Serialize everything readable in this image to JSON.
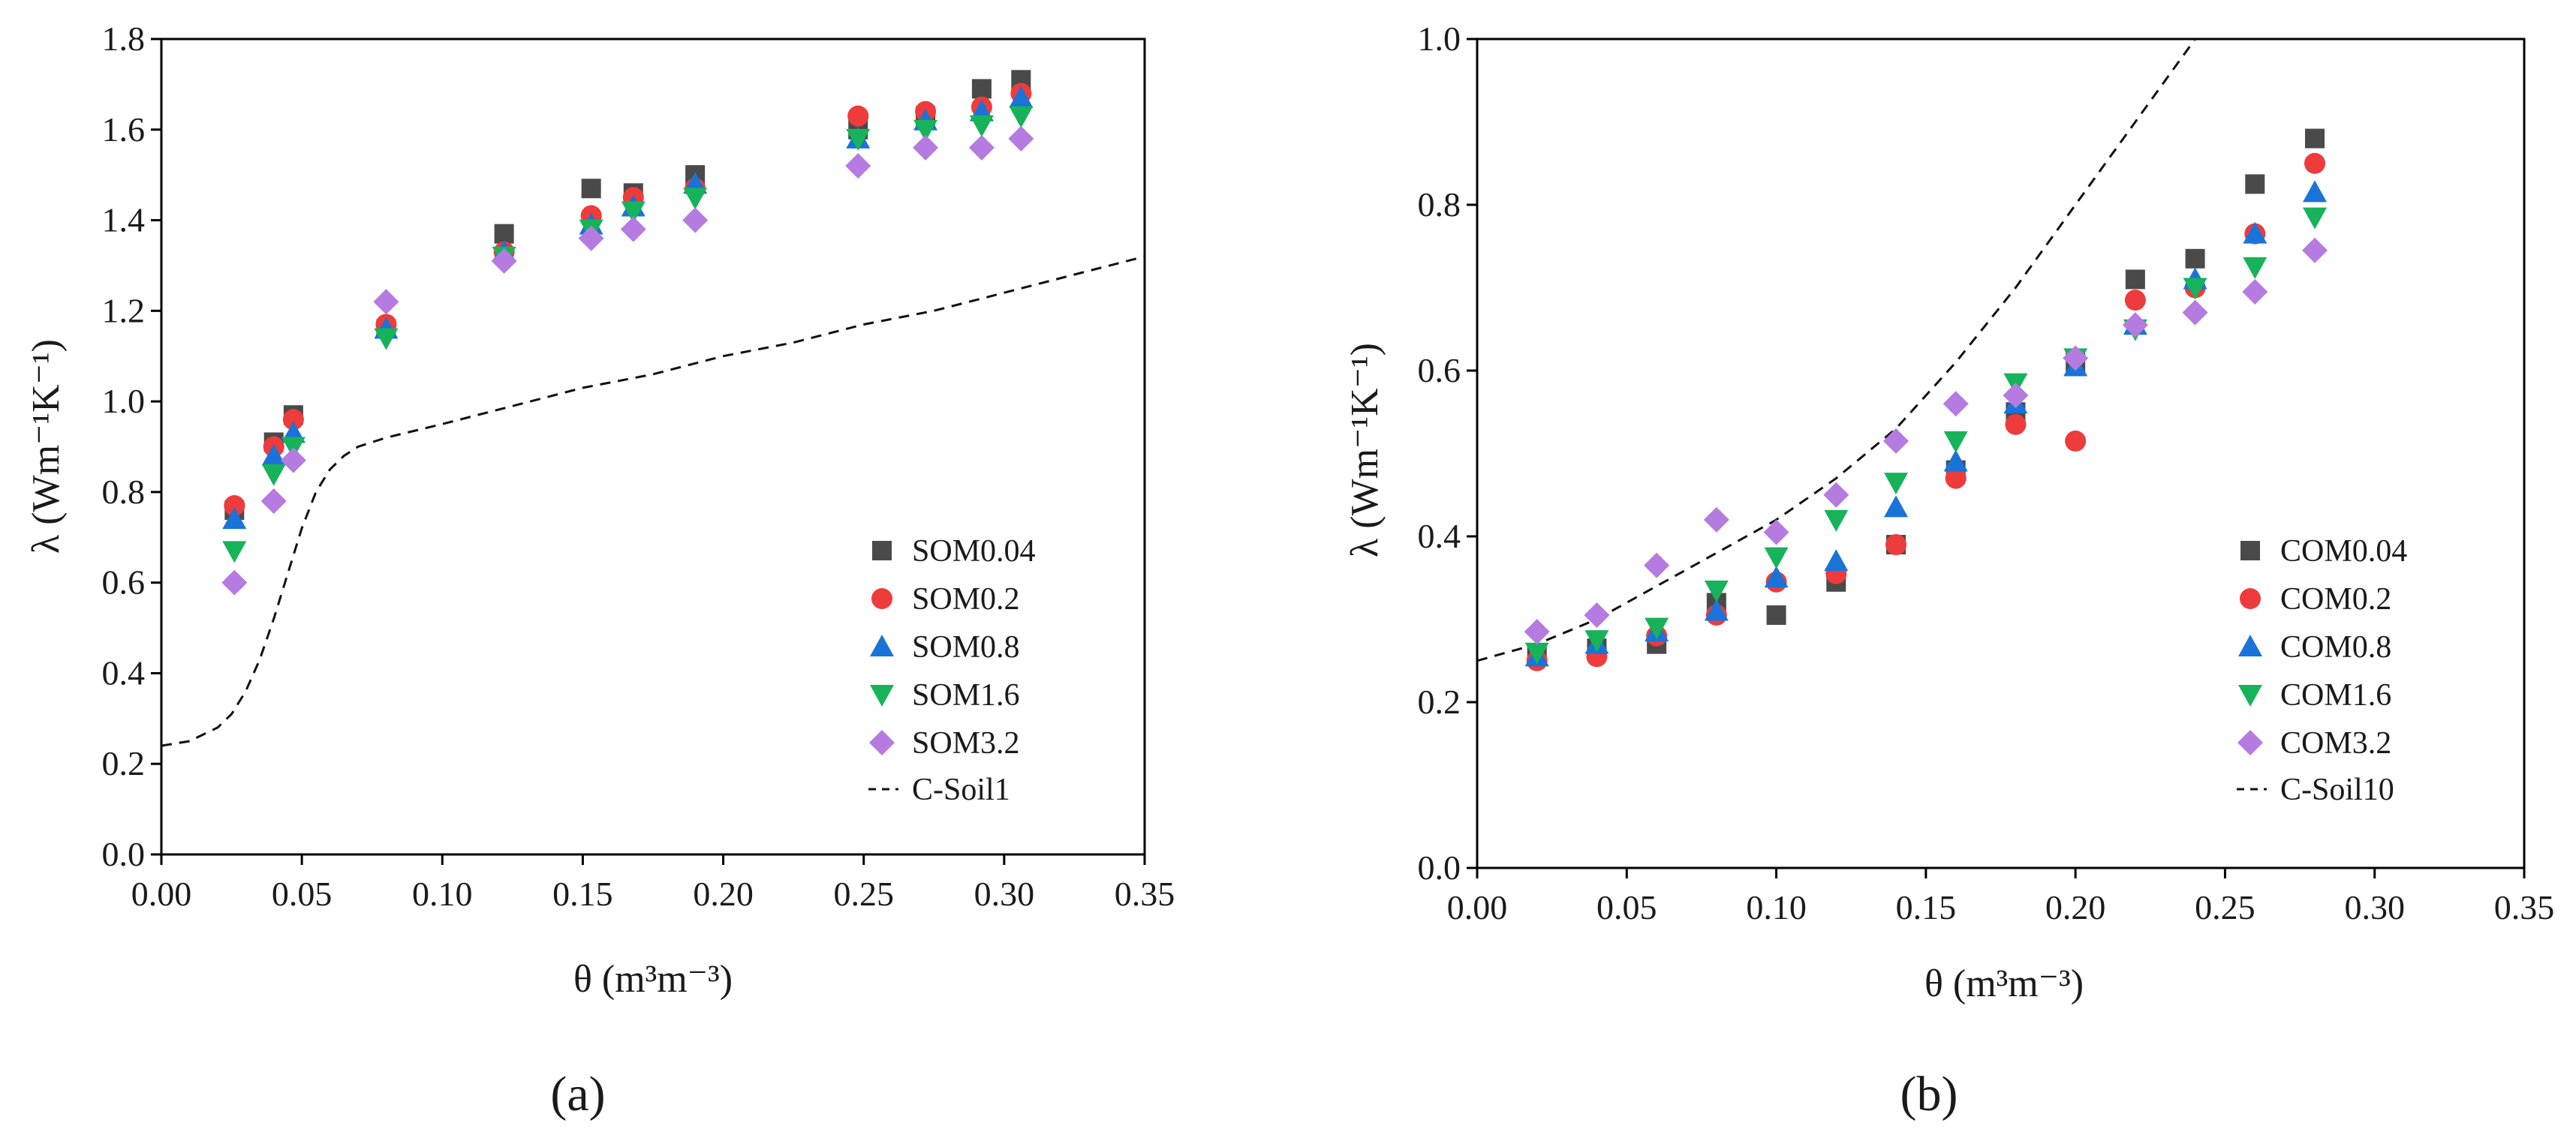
{
  "chart_data": [
    {
      "type": "scatter",
      "panel_label": "(a)",
      "xlabel": "θ (m³m⁻³)",
      "ylabel": "λ (Wm⁻¹K⁻¹)",
      "xlim": [
        0,
        0.35
      ],
      "ylim": [
        0,
        1.8
      ],
      "x_ticks": [
        0.0,
        0.05,
        0.1,
        0.15,
        0.2,
        0.25,
        0.3,
        0.35
      ],
      "y_ticks": [
        0.0,
        0.2,
        0.4,
        0.6,
        0.8,
        1.0,
        1.2,
        1.4,
        1.6,
        1.8
      ],
      "legend_position": "bottom-right",
      "x": [
        0.026,
        0.04,
        0.047,
        0.08,
        0.122,
        0.153,
        0.168,
        0.19,
        0.248,
        0.272,
        0.292,
        0.306
      ],
      "series": [
        {
          "name": "SOM0.04",
          "marker": "square",
          "color": "#4a4a4a",
          "values": [
            0.76,
            0.91,
            0.97,
            1.16,
            1.37,
            1.47,
            1.46,
            1.5,
            1.6,
            1.63,
            1.69,
            1.71
          ]
        },
        {
          "name": "SOM0.2",
          "marker": "circle",
          "color": "#ee3b3b",
          "values": [
            0.77,
            0.9,
            0.96,
            1.17,
            1.33,
            1.41,
            1.45,
            1.47,
            1.63,
            1.64,
            1.65,
            1.68
          ]
        },
        {
          "name": "SOM0.8",
          "marker": "triangle-up",
          "color": "#1a73d8",
          "values": [
            0.74,
            0.88,
            0.93,
            1.16,
            1.33,
            1.39,
            1.43,
            1.48,
            1.58,
            1.62,
            1.64,
            1.67
          ]
        },
        {
          "name": "SOM1.6",
          "marker": "triangle-down",
          "color": "#17b35a",
          "values": [
            0.67,
            0.84,
            0.9,
            1.14,
            1.32,
            1.38,
            1.42,
            1.45,
            1.58,
            1.6,
            1.61,
            1.63
          ]
        },
        {
          "name": "SOM3.2",
          "marker": "diamond",
          "color": "#b57be0",
          "values": [
            0.6,
            0.78,
            0.87,
            1.22,
            1.31,
            1.36,
            1.38,
            1.4,
            1.52,
            1.56,
            1.56,
            1.58
          ]
        }
      ],
      "model_curve": {
        "name": "C-Soil1",
        "style": "dashed",
        "x": [
          0.0,
          0.01,
          0.02,
          0.025,
          0.03,
          0.035,
          0.04,
          0.045,
          0.05,
          0.055,
          0.06,
          0.065,
          0.07,
          0.08,
          0.1,
          0.125,
          0.15,
          0.175,
          0.2,
          0.225,
          0.25,
          0.275,
          0.3,
          0.325,
          0.35
        ],
        "y": [
          0.24,
          0.25,
          0.28,
          0.31,
          0.36,
          0.43,
          0.52,
          0.62,
          0.72,
          0.8,
          0.85,
          0.88,
          0.9,
          0.92,
          0.95,
          0.99,
          1.03,
          1.06,
          1.1,
          1.13,
          1.17,
          1.2,
          1.24,
          1.28,
          1.32
        ]
      }
    },
    {
      "type": "scatter",
      "panel_label": "(b)",
      "xlabel": "θ (m³m⁻³)",
      "ylabel": "λ (Wm⁻¹K⁻¹)",
      "xlim": [
        0,
        0.35
      ],
      "ylim": [
        0,
        1.0
      ],
      "x_ticks": [
        0.0,
        0.05,
        0.1,
        0.15,
        0.2,
        0.25,
        0.3,
        0.35
      ],
      "y_ticks": [
        0.0,
        0.2,
        0.4,
        0.6,
        0.8,
        1.0
      ],
      "legend_position": "bottom-right",
      "x": [
        0.02,
        0.04,
        0.06,
        0.08,
        0.1,
        0.12,
        0.14,
        0.16,
        0.18,
        0.2,
        0.22,
        0.24,
        0.26,
        0.28
      ],
      "series": [
        {
          "name": "COM0.04",
          "marker": "square",
          "color": "#4a4a4a",
          "values": [
            0.255,
            0.265,
            0.27,
            0.32,
            0.305,
            0.345,
            0.39,
            0.48,
            0.55,
            0.61,
            0.71,
            0.735,
            0.825,
            0.88
          ]
        },
        {
          "name": "COM0.2",
          "marker": "circle",
          "color": "#ee3b3b",
          "values": [
            0.25,
            0.255,
            0.28,
            0.305,
            0.345,
            0.355,
            0.39,
            0.47,
            0.535,
            0.515,
            0.685,
            0.7,
            0.765,
            0.85
          ]
        },
        {
          "name": "COM0.8",
          "marker": "triangle-up",
          "color": "#1a73d8",
          "values": [
            0.255,
            0.27,
            0.285,
            0.31,
            0.35,
            0.37,
            0.435,
            0.49,
            0.56,
            0.605,
            0.655,
            0.71,
            0.765,
            0.815
          ]
        },
        {
          "name": "COM1.6",
          "marker": "triangle-down",
          "color": "#17b35a",
          "values": [
            0.26,
            0.275,
            0.29,
            0.335,
            0.375,
            0.42,
            0.465,
            0.515,
            0.585,
            0.615,
            0.65,
            0.7,
            0.725,
            0.785
          ]
        },
        {
          "name": "COM3.2",
          "marker": "diamond",
          "color": "#b57be0",
          "values": [
            0.285,
            0.305,
            0.365,
            0.42,
            0.405,
            0.45,
            0.515,
            0.56,
            0.57,
            0.615,
            0.655,
            0.67,
            0.695,
            0.745
          ]
        }
      ],
      "model_curve": {
        "name": "C-Soil10",
        "style": "dashed",
        "x": [
          0.0,
          0.02,
          0.04,
          0.06,
          0.08,
          0.1,
          0.12,
          0.14,
          0.16,
          0.18,
          0.2,
          0.22,
          0.24
        ],
        "y": [
          0.25,
          0.27,
          0.3,
          0.34,
          0.38,
          0.42,
          0.47,
          0.53,
          0.61,
          0.7,
          0.8,
          0.9,
          1.0
        ]
      }
    }
  ]
}
